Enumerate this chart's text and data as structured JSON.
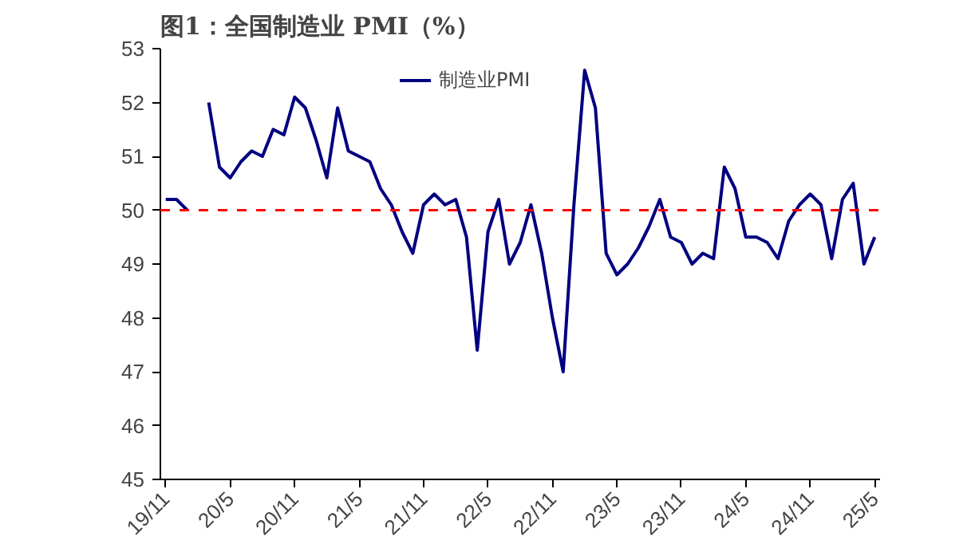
{
  "chart_data": {
    "type": "line",
    "title": "图1：全国制造业 PMI（%）",
    "categories": [
      "19/11",
      null,
      null,
      null,
      null,
      null,
      "20/5",
      null,
      null,
      null,
      null,
      null,
      "20/11",
      null,
      null,
      null,
      null,
      null,
      "21/5",
      null,
      null,
      null,
      null,
      null,
      "21/11",
      null,
      null,
      null,
      null,
      null,
      "22/5",
      null,
      null,
      null,
      null,
      null,
      "22/11",
      null,
      null,
      null,
      null,
      null,
      "23/5",
      null,
      null,
      null,
      null,
      null,
      "23/11",
      null,
      null,
      null,
      null,
      null,
      "24/5",
      null,
      null,
      null,
      null,
      null,
      "24/11",
      null,
      null,
      null,
      null,
      null,
      "25/5"
    ],
    "series": [
      {
        "name": "制造业PMI",
        "color": "#000080",
        "values": [
          50.2,
          50.2,
          50.0,
          null,
          52.0,
          50.8,
          50.6,
          50.9,
          51.1,
          51.0,
          51.5,
          51.4,
          52.1,
          51.9,
          51.3,
          50.6,
          51.9,
          51.1,
          51.0,
          50.9,
          50.4,
          50.1,
          49.6,
          49.2,
          50.1,
          50.3,
          50.1,
          50.2,
          49.5,
          47.4,
          49.6,
          50.2,
          49.0,
          49.4,
          50.1,
          49.2,
          48.0,
          47.0,
          50.1,
          52.6,
          51.9,
          49.2,
          48.8,
          49.0,
          49.3,
          49.7,
          50.2,
          49.5,
          49.4,
          49.0,
          49.2,
          49.1,
          50.8,
          50.4,
          49.5,
          49.5,
          49.4,
          49.1,
          49.8,
          50.1,
          50.3,
          50.1,
          49.1,
          50.2,
          50.5,
          49.0,
          49.5
        ]
      }
    ],
    "ylim": [
      45,
      53
    ],
    "yticks": [
      45,
      46,
      47,
      48,
      49,
      50,
      51,
      52,
      53
    ],
    "ref_lines": [
      {
        "axis": "y",
        "value": 50,
        "color": "#ff0000",
        "line_style": "dashed"
      }
    ],
    "grid": false,
    "legend": "top",
    "line_style": "solid",
    "marker": "none"
  }
}
